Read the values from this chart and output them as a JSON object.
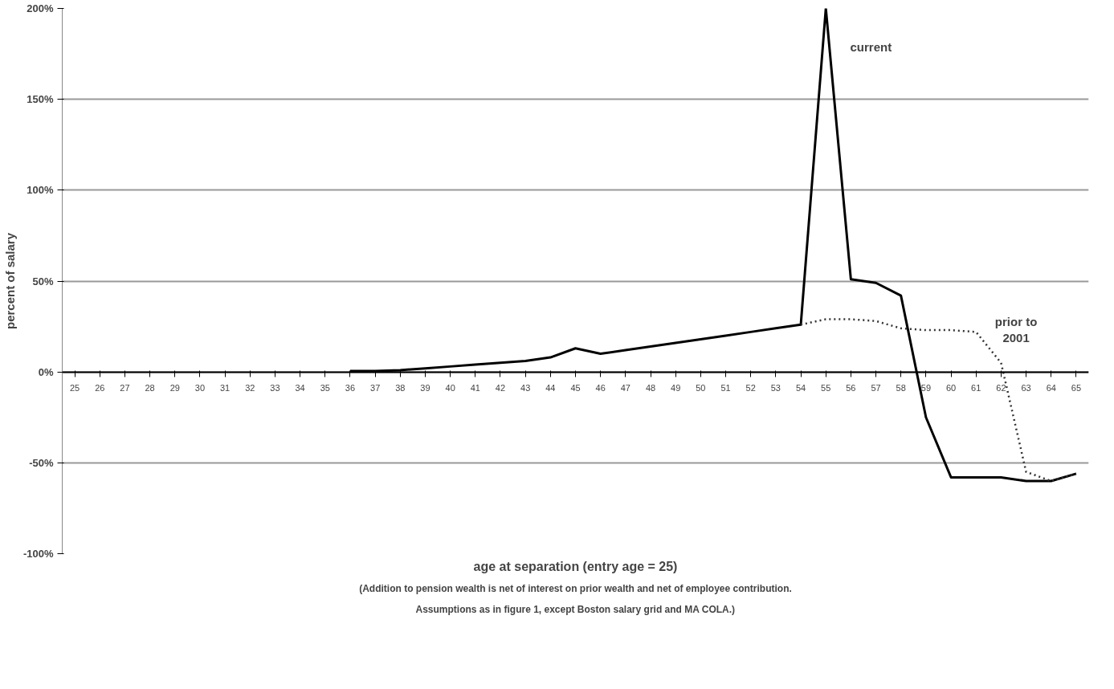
{
  "chart_data": {
    "type": "line",
    "ylabel": "percent of salary",
    "xlabel": "age at separation (entry age = 25)",
    "categories": [
      "25",
      "26",
      "27",
      "28",
      "29",
      "30",
      "31",
      "32",
      "33",
      "34",
      "35",
      "36",
      "37",
      "38",
      "39",
      "40",
      "41",
      "42",
      "43",
      "44",
      "45",
      "46",
      "47",
      "48",
      "49",
      "50",
      "51",
      "52",
      "53",
      "54",
      "55",
      "56",
      "57",
      "58",
      "59",
      "60",
      "61",
      "62",
      "63",
      "64",
      "65"
    ],
    "series": [
      {
        "name": "current",
        "color": "#000000",
        "line_style": "solid",
        "values": [
          null,
          null,
          null,
          null,
          null,
          null,
          null,
          null,
          null,
          null,
          null,
          0.5,
          0.5,
          1,
          2,
          3,
          4,
          5,
          6,
          8,
          13,
          10,
          12,
          14,
          16,
          18,
          20,
          22,
          24,
          26,
          200,
          51,
          49,
          42,
          -25,
          -58,
          -58,
          -58,
          -60,
          -60,
          -56
        ]
      },
      {
        "name": "prior to\n2001",
        "color": "#333333",
        "line_style": "dotted",
        "values": [
          null,
          null,
          null,
          null,
          null,
          null,
          null,
          null,
          null,
          null,
          null,
          null,
          null,
          null,
          null,
          null,
          null,
          null,
          null,
          null,
          null,
          null,
          null,
          null,
          null,
          null,
          null,
          null,
          null,
          26,
          29,
          29,
          28,
          24,
          23,
          23,
          22,
          5,
          -55,
          -60,
          -56
        ]
      }
    ],
    "ylim": [
      -100,
      200
    ],
    "yticks": [
      {
        "value": -100,
        "label": "-100%"
      },
      {
        "value": -50,
        "label": "-50%"
      },
      {
        "value": 0,
        "label": "0%"
      },
      {
        "value": 50,
        "label": "50%"
      },
      {
        "value": 100,
        "label": "100%"
      },
      {
        "value": 150,
        "label": "150%"
      },
      {
        "value": 200,
        "label": "200%"
      }
    ],
    "grid": "y",
    "legend": false,
    "annotations": [
      "(Addition to pension wealth is net of interest on prior wealth and net of employee contribution.",
      "Assumptions as in figure 1, except Boston salary grid and MA COLA.)"
    ]
  }
}
